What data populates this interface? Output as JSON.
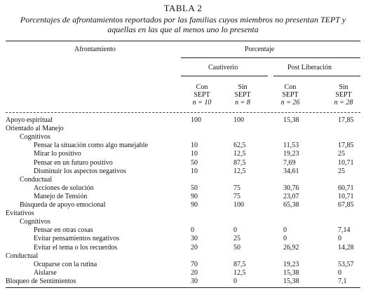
{
  "table": {
    "title": "TABLA 2",
    "subtitle": "Porcentajes de afrontamientos reportados por las familias cuyos miembros no presentan TEPT y aquellas en las que al menos uno lo presenta",
    "col_header_left": "Afrontamiento",
    "col_header_right": "Porcentaje",
    "groups": [
      "Cautiverio",
      "Post Liberación"
    ],
    "subcols": [
      {
        "line1": "Con",
        "line2": "SEPT",
        "n": "n = 10"
      },
      {
        "line1": "Sin",
        "line2": "SEPT",
        "n": "n = 8"
      },
      {
        "line1": "Con",
        "line2": "SEPT",
        "n": "n = 26"
      },
      {
        "line1": "Sin",
        "line2": "SEPT",
        "n": "n = 28"
      }
    ],
    "rows": [
      {
        "label": "Apoyo espiritual",
        "level": 0,
        "values": [
          "100",
          "100",
          "15,38",
          "17,85"
        ]
      },
      {
        "label": "Orientado al Manejo",
        "level": 0,
        "values": [
          "",
          "",
          "",
          ""
        ]
      },
      {
        "label": "Cognitivos",
        "level": 1,
        "values": [
          "",
          "",
          "",
          ""
        ]
      },
      {
        "label": "Pensar la situación como algo manejable",
        "level": 2,
        "values": [
          "10",
          "62,5",
          "11,53",
          "17,85"
        ]
      },
      {
        "label": "Mirar lo positivo",
        "level": 2,
        "values": [
          "10",
          "12,5",
          "19,23",
          "25"
        ]
      },
      {
        "label": "Pensar en un futuro positivo",
        "level": 2,
        "values": [
          "50",
          "87,5",
          "7,69",
          "10,71"
        ]
      },
      {
        "label": "Disminuir los aspectos negativos",
        "level": 2,
        "values": [
          "10",
          "12,5",
          "34,61",
          "25"
        ]
      },
      {
        "label": "Conductual",
        "level": 1,
        "values": [
          "",
          "",
          "",
          ""
        ]
      },
      {
        "label": "Acciones de solución",
        "level": 2,
        "values": [
          "50",
          "75",
          "30,76",
          "60,71"
        ]
      },
      {
        "label": "Manejo de Tensión",
        "level": 2,
        "values": [
          "90",
          "75",
          "23,07",
          "10,71"
        ]
      },
      {
        "label": "Búsqueda de apoyo emocional",
        "level": 1,
        "values": [
          "90",
          "100",
          "65,38",
          "67,85"
        ]
      },
      {
        "label": "Evitativos",
        "level": 0,
        "values": [
          "",
          "",
          "",
          ""
        ]
      },
      {
        "label": "Cognitivos",
        "level": 1,
        "values": [
          "",
          "",
          "",
          ""
        ]
      },
      {
        "label": "Pensar en otras cosas",
        "level": 2,
        "values": [
          "0",
          "0",
          "0",
          "7,14"
        ]
      },
      {
        "label": "Evitar pensamientos negativos",
        "level": 2,
        "values": [
          "30",
          "25",
          "0",
          "0"
        ]
      },
      {
        "label": "Evitar el tema o los recuerdos",
        "level": 2,
        "values": [
          "20",
          "50",
          "26,92",
          "14,28"
        ]
      },
      {
        "label": "Conductual",
        "level": 0,
        "values": [
          "",
          "",
          "",
          ""
        ]
      },
      {
        "label": "Ocuparse con la rutina",
        "level": 2,
        "values": [
          "70",
          "87,5",
          "19,23",
          "53,57"
        ]
      },
      {
        "label": "Aislarse",
        "level": 2,
        "values": [
          "20",
          "12,5",
          "15,38",
          "0"
        ]
      },
      {
        "label": "Bloqueo de Sentimientos",
        "level": 0,
        "values": [
          "30",
          "0",
          "15,38",
          "7,1"
        ]
      }
    ]
  }
}
